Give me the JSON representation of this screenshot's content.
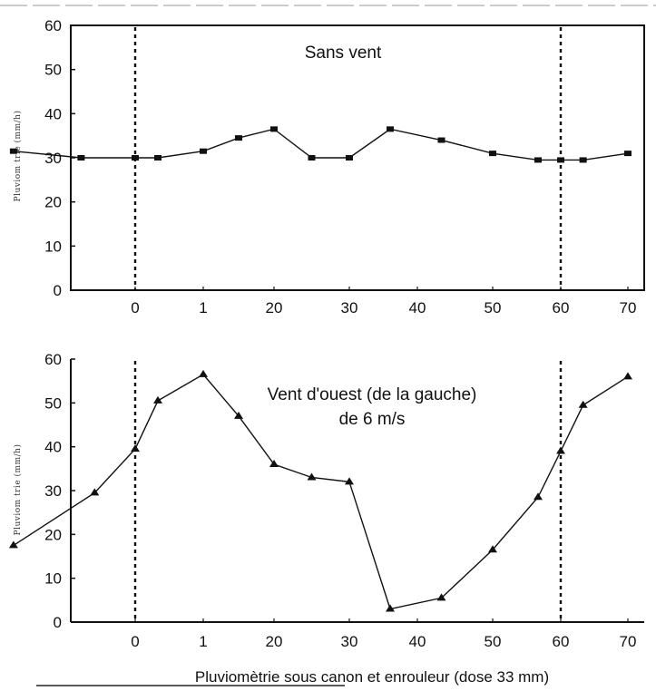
{
  "xlabel": "Pluviomètrie sous canon et enrouleur (dose 33 mm)",
  "chart_data": [
    {
      "type": "line",
      "ylabel": "Pluviom trie (mm/h)",
      "annotation": [
        "Sans vent"
      ],
      "marker": "square",
      "ylim": [
        0,
        60
      ],
      "yticks": [
        "0",
        "10",
        "20",
        "30",
        "40",
        "50",
        "60"
      ],
      "x_tick_labels": [
        "0",
        "1",
        "20",
        "30",
        "40",
        "50",
        "60",
        "70"
      ],
      "dashed_verticals": [
        0,
        60
      ],
      "series": [
        {
          "x": [
            -9,
            -4,
            0,
            3,
            9,
            15,
            21,
            27,
            33,
            39,
            45,
            51,
            57,
            60,
            63,
            69
          ],
          "y": [
            31.5,
            30,
            30,
            30,
            31.5,
            34.5,
            36.5,
            30,
            30,
            36.5,
            34,
            31,
            29.5,
            29.5,
            29.5,
            31
          ]
        }
      ]
    },
    {
      "type": "line",
      "ylabel": "Pluviom trie (mm/h)",
      "annotation": [
        "Vent d'ouest (de la gauche)",
        "de 6 m/s"
      ],
      "marker": "triangle",
      "ylim": [
        0,
        60
      ],
      "yticks": [
        "0",
        "10",
        "20",
        "30",
        "40",
        "50",
        "60"
      ],
      "x_tick_labels": [
        "0",
        "1",
        "20",
        "30",
        "40",
        "50",
        "60",
        "70"
      ],
      "dashed_verticals": [
        0,
        60
      ],
      "series": [
        {
          "x": [
            -9,
            -3,
            0,
            3,
            9,
            15,
            21,
            27,
            33,
            39,
            45,
            51,
            57,
            60,
            63,
            69
          ],
          "y": [
            17.5,
            29.5,
            39.5,
            50.5,
            56.5,
            47,
            36,
            33,
            32,
            3,
            5.5,
            16.5,
            28.5,
            39,
            49.5,
            56
          ]
        }
      ]
    }
  ]
}
